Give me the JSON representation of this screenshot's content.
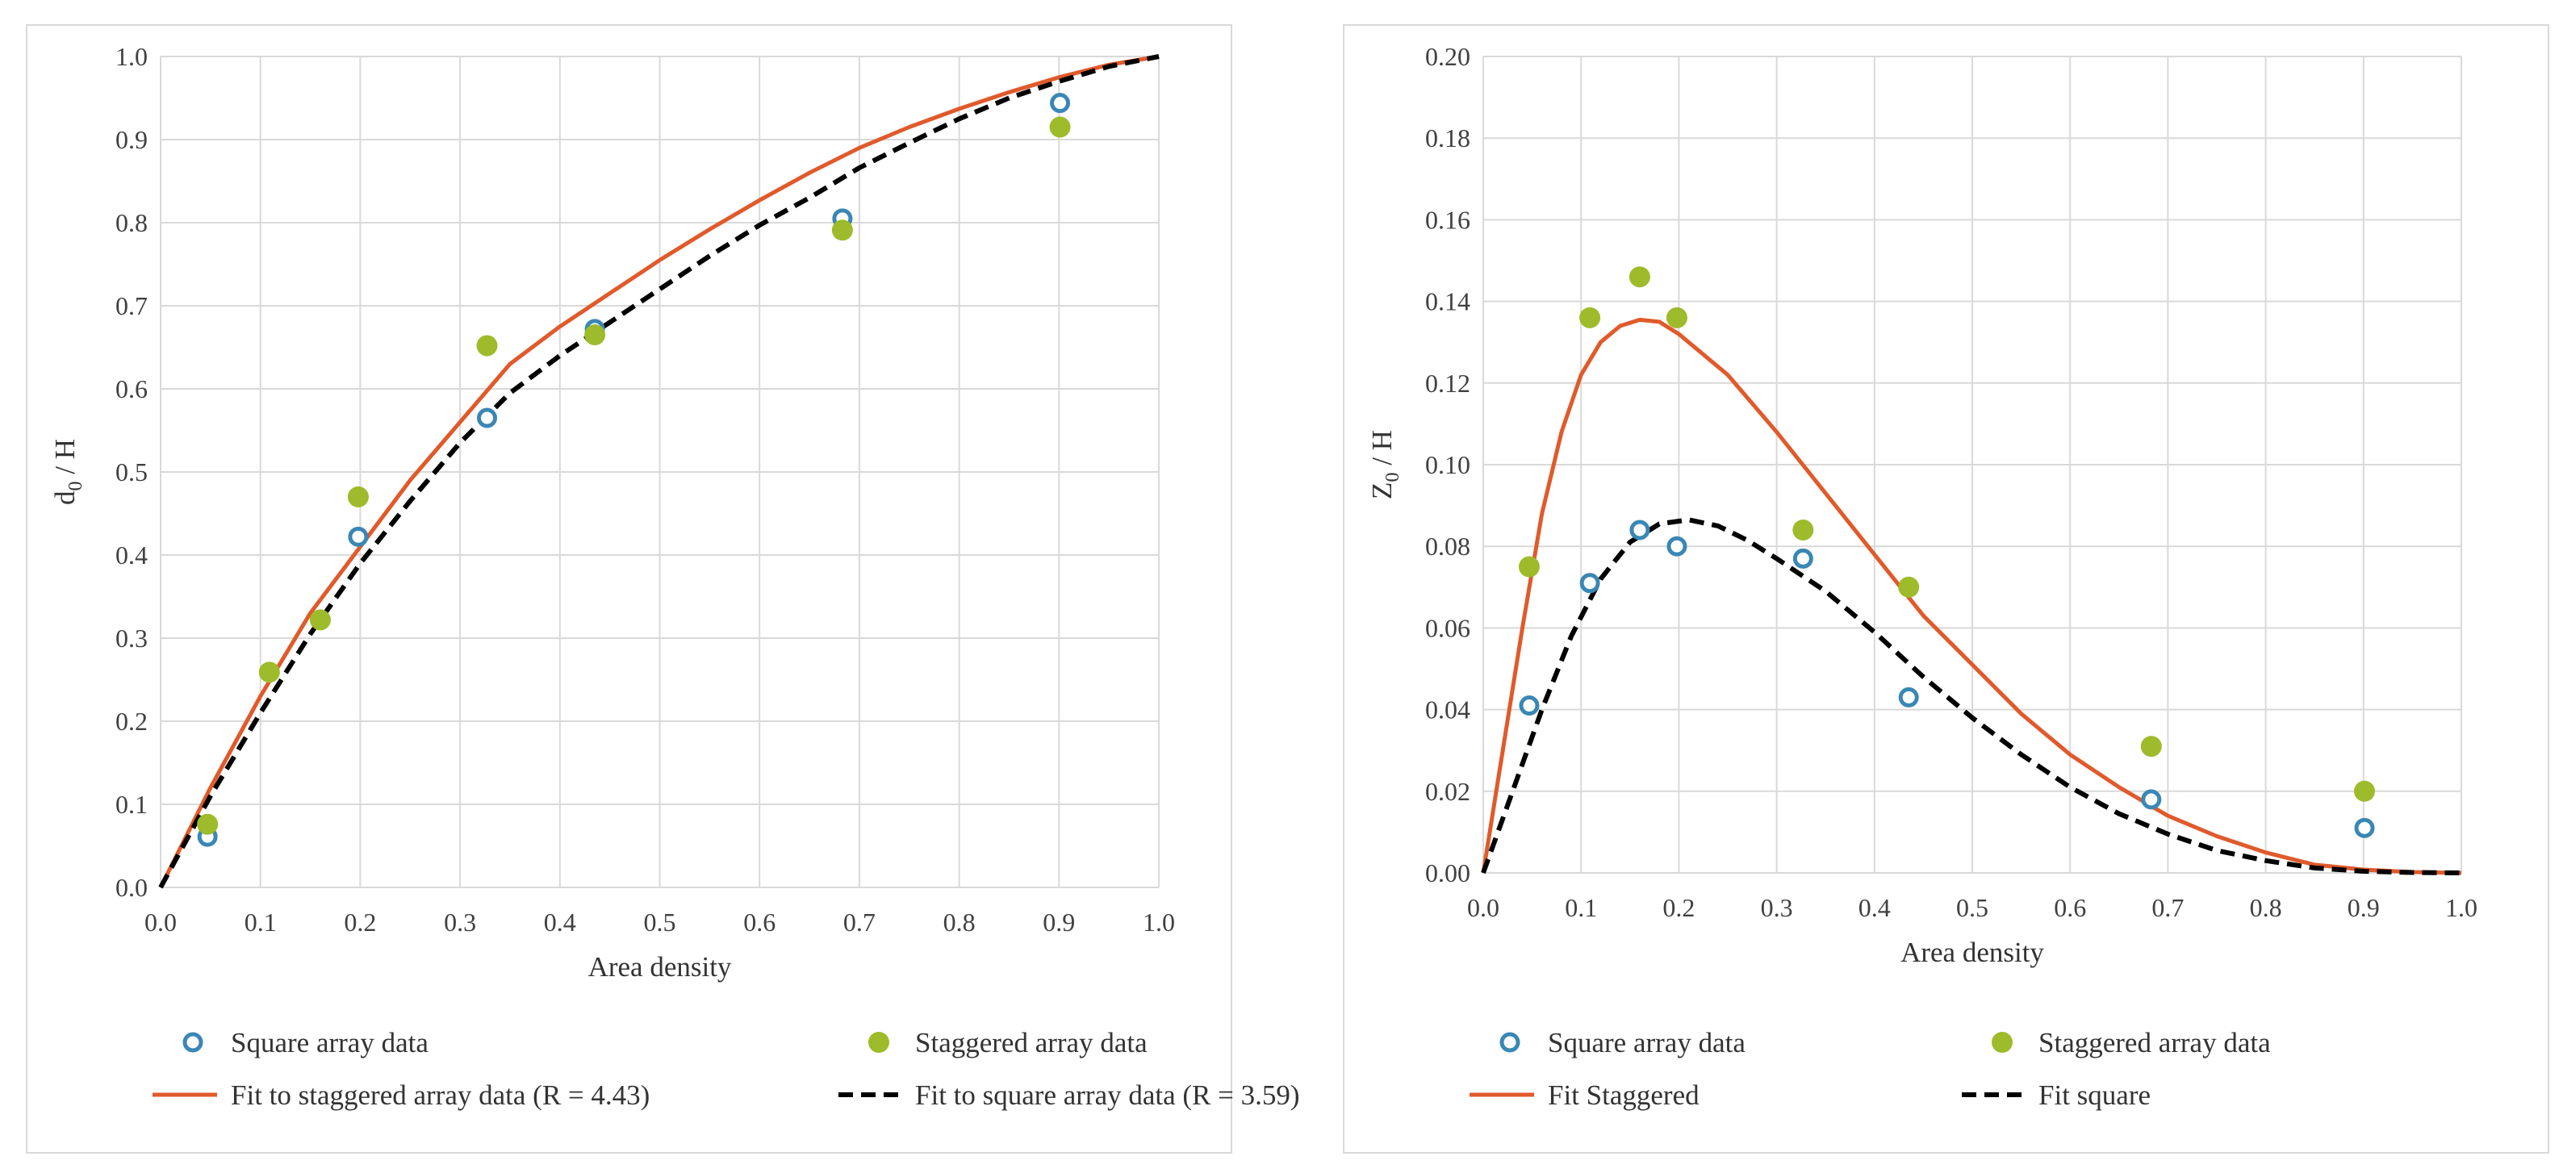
{
  "colors": {
    "square": "#3a87b5",
    "staggered": "#9dbb2a",
    "fit_staggered": "#e05a2b",
    "fit_square": "#000000",
    "grid": "#d9d9d9"
  },
  "chart_data": [
    {
      "type": "scatter",
      "title": "",
      "xlabel": "Area density",
      "ylabel_main": "d",
      "ylabel_sub": "0",
      "ylabel_rest": " / H",
      "xlim": [
        0,
        1
      ],
      "ylim": [
        0,
        1
      ],
      "xticks": [
        "0.0",
        "0.1",
        "0.2",
        "0.3",
        "0.4",
        "0.5",
        "0.6",
        "0.7",
        "0.8",
        "0.9",
        "1.0"
      ],
      "yticks": [
        "0.0",
        "0.1",
        "0.2",
        "0.3",
        "0.4",
        "0.5",
        "0.6",
        "0.7",
        "0.8",
        "0.9",
        "1.0"
      ],
      "series": [
        {
          "name": "Square array data",
          "kind": "points-open",
          "color_key": "square",
          "points": [
            [
              0.047,
              0.061
            ],
            [
              0.198,
              0.422
            ],
            [
              0.327,
              0.565
            ],
            [
              0.435,
              0.672
            ],
            [
              0.683,
              0.805
            ],
            [
              0.901,
              0.944
            ]
          ]
        },
        {
          "name": "Staggered array data",
          "kind": "points-filled",
          "color_key": "staggered",
          "points": [
            [
              0.047,
              0.076
            ],
            [
              0.109,
              0.259
            ],
            [
              0.16,
              0.322
            ],
            [
              0.198,
              0.47
            ],
            [
              0.327,
              0.652
            ],
            [
              0.435,
              0.665
            ],
            [
              0.683,
              0.791
            ],
            [
              0.901,
              0.915
            ]
          ]
        },
        {
          "name": "Fit to staggered array data (R = 4.43)",
          "kind": "line-solid",
          "color_key": "fit_staggered",
          "points": [
            [
              0,
              0
            ],
            [
              0.05,
              0.12
            ],
            [
              0.1,
              0.23
            ],
            [
              0.15,
              0.33
            ],
            [
              0.2,
              0.41
            ],
            [
              0.25,
              0.49
            ],
            [
              0.3,
              0.56
            ],
            [
              0.35,
              0.63
            ],
            [
              0.4,
              0.675
            ],
            [
              0.45,
              0.715
            ],
            [
              0.5,
              0.755
            ],
            [
              0.55,
              0.792
            ],
            [
              0.6,
              0.827
            ],
            [
              0.65,
              0.86
            ],
            [
              0.7,
              0.89
            ],
            [
              0.75,
              0.915
            ],
            [
              0.8,
              0.937
            ],
            [
              0.85,
              0.957
            ],
            [
              0.9,
              0.975
            ],
            [
              0.95,
              0.99
            ],
            [
              1.0,
              1.0
            ]
          ]
        },
        {
          "name": "Fit to square array data (R = 3.59)",
          "kind": "line-dashed",
          "color_key": "fit_square",
          "points": [
            [
              0,
              0
            ],
            [
              0.05,
              0.11
            ],
            [
              0.1,
              0.21
            ],
            [
              0.15,
              0.305
            ],
            [
              0.2,
              0.39
            ],
            [
              0.25,
              0.465
            ],
            [
              0.3,
              0.535
            ],
            [
              0.35,
              0.595
            ],
            [
              0.4,
              0.64
            ],
            [
              0.45,
              0.68
            ],
            [
              0.5,
              0.72
            ],
            [
              0.55,
              0.76
            ],
            [
              0.6,
              0.797
            ],
            [
              0.65,
              0.83
            ],
            [
              0.7,
              0.866
            ],
            [
              0.75,
              0.896
            ],
            [
              0.8,
              0.925
            ],
            [
              0.85,
              0.95
            ],
            [
              0.9,
              0.97
            ],
            [
              0.95,
              0.988
            ],
            [
              1.0,
              1.0
            ]
          ]
        }
      ],
      "legend": [
        [
          "Square array data",
          "Staggered array data"
        ],
        [
          "Fit to staggered array data (R = 4.43)",
          "Fit to square array data (R = 3.59)"
        ]
      ]
    },
    {
      "type": "scatter",
      "title": "",
      "xlabel": "Area density",
      "ylabel_main": "Z",
      "ylabel_sub": "0",
      "ylabel_rest": " / H",
      "xlim": [
        0,
        1
      ],
      "ylim": [
        0,
        0.2
      ],
      "xticks": [
        "0.0",
        "0.1",
        "0.2",
        "0.3",
        "0.4",
        "0.5",
        "0.6",
        "0.7",
        "0.8",
        "0.9",
        "1.0"
      ],
      "yticks": [
        "0.00",
        "0.02",
        "0.04",
        "0.06",
        "0.08",
        "0.10",
        "0.12",
        "0.14",
        "0.16",
        "0.18",
        "0.20"
      ],
      "series": [
        {
          "name": "Square array data",
          "kind": "points-open",
          "color_key": "square",
          "points": [
            [
              0.047,
              0.041
            ],
            [
              0.109,
              0.071
            ],
            [
              0.16,
              0.084
            ],
            [
              0.198,
              0.08
            ],
            [
              0.327,
              0.077
            ],
            [
              0.435,
              0.043
            ],
            [
              0.683,
              0.018
            ],
            [
              0.901,
              0.011
            ]
          ]
        },
        {
          "name": "Staggered array data",
          "kind": "points-filled",
          "color_key": "staggered",
          "points": [
            [
              0.047,
              0.075
            ],
            [
              0.109,
              0.136
            ],
            [
              0.16,
              0.146
            ],
            [
              0.198,
              0.136
            ],
            [
              0.327,
              0.084
            ],
            [
              0.435,
              0.07
            ],
            [
              0.683,
              0.031
            ],
            [
              0.901,
              0.02
            ]
          ]
        },
        {
          "name": "Fit Staggered",
          "kind": "line-solid",
          "color_key": "fit_staggered",
          "points": [
            [
              0,
              0
            ],
            [
              0.02,
              0.03
            ],
            [
              0.04,
              0.06
            ],
            [
              0.06,
              0.088
            ],
            [
              0.08,
              0.108
            ],
            [
              0.1,
              0.122
            ],
            [
              0.12,
              0.13
            ],
            [
              0.14,
              0.134
            ],
            [
              0.16,
              0.1355
            ],
            [
              0.18,
              0.135
            ],
            [
              0.2,
              0.132
            ],
            [
              0.25,
              0.122
            ],
            [
              0.3,
              0.108
            ],
            [
              0.35,
              0.093
            ],
            [
              0.4,
              0.078
            ],
            [
              0.45,
              0.063
            ],
            [
              0.5,
              0.051
            ],
            [
              0.55,
              0.039
            ],
            [
              0.6,
              0.029
            ],
            [
              0.65,
              0.021
            ],
            [
              0.7,
              0.014
            ],
            [
              0.75,
              0.009
            ],
            [
              0.8,
              0.005
            ],
            [
              0.85,
              0.002
            ],
            [
              0.9,
              0.0008
            ],
            [
              0.95,
              0.0002
            ],
            [
              1.0,
              0
            ]
          ]
        },
        {
          "name": "Fit square",
          "kind": "line-dashed",
          "color_key": "fit_square",
          "points": [
            [
              0,
              0
            ],
            [
              0.03,
              0.02
            ],
            [
              0.06,
              0.04
            ],
            [
              0.09,
              0.058
            ],
            [
              0.12,
              0.072
            ],
            [
              0.15,
              0.081
            ],
            [
              0.18,
              0.0855
            ],
            [
              0.21,
              0.0865
            ],
            [
              0.24,
              0.085
            ],
            [
              0.27,
              0.0815
            ],
            [
              0.3,
              0.077
            ],
            [
              0.35,
              0.069
            ],
            [
              0.4,
              0.059
            ],
            [
              0.45,
              0.048
            ],
            [
              0.5,
              0.038
            ],
            [
              0.55,
              0.029
            ],
            [
              0.6,
              0.021
            ],
            [
              0.65,
              0.0145
            ],
            [
              0.7,
              0.0095
            ],
            [
              0.75,
              0.0055
            ],
            [
              0.8,
              0.003
            ],
            [
              0.85,
              0.0012
            ],
            [
              0.9,
              0.0004
            ],
            [
              0.95,
              0.0001
            ],
            [
              1.0,
              0
            ]
          ]
        }
      ],
      "legend": [
        [
          "Square array data",
          "Staggered array data"
        ],
        [
          "Fit Staggered",
          "Fit square"
        ]
      ]
    }
  ]
}
